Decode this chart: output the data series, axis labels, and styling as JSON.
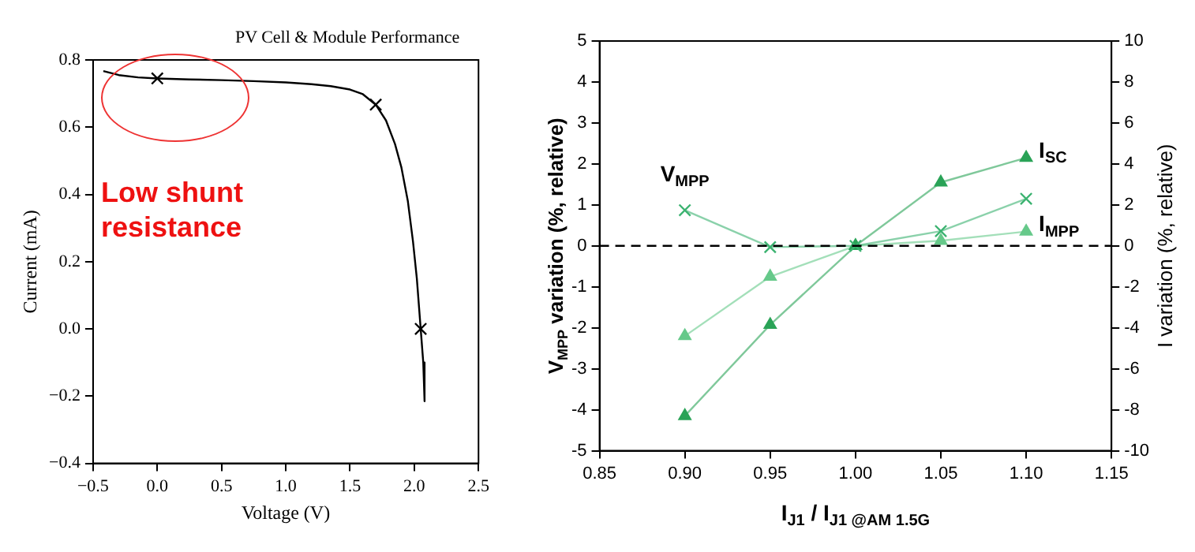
{
  "chart_data": [
    {
      "type": "line",
      "title": "PV Cell & Module Performance",
      "xlabel": "Voltage (V)",
      "ylabel": "Current (mA)",
      "annotations": [
        "Low shunt resistance"
      ],
      "grid": false,
      "legend": false,
      "xlim": [
        -0.5,
        2.5
      ],
      "xticks": [
        {
          "value": -0.5,
          "label": "−0.5"
        },
        {
          "value": 0,
          "label": "0.0"
        },
        0.5,
        {
          "value": 1,
          "label": "1.0"
        },
        1.5,
        {
          "value": 2,
          "label": "2.0"
        },
        2.5
      ],
      "ylim": [
        -0.4,
        0.8
      ],
      "yticks": [
        {
          "value": -0.4,
          "label": "−0.4"
        },
        {
          "value": -0.2,
          "label": "−0.2"
        },
        {
          "value": 0,
          "label": "0.0"
        },
        0.2,
        0.4,
        0.6,
        0.8
      ],
      "series": [
        {
          "type": "line",
          "color": "#000000",
          "marker": "none",
          "x": [
            -0.42,
            -0.3,
            -0.15,
            0,
            0.25,
            0.5,
            0.75,
            1.0,
            1.2,
            1.35,
            1.5,
            1.6,
            1.7,
            1.78,
            1.85,
            1.9,
            1.95,
            1.99,
            2.02,
            2.05,
            2.07,
            2.08
          ],
          "values": [
            0.767,
            0.755,
            0.748,
            0.745,
            0.742,
            0.74,
            0.737,
            0.733,
            0.728,
            0.722,
            0.712,
            0.698,
            0.667,
            0.62,
            0.55,
            0.48,
            0.38,
            0.26,
            0.15,
            0.0,
            -0.1,
            -0.215
          ]
        },
        {
          "type": "scatter",
          "color": "#000000",
          "marker": "cross",
          "x": [
            0,
            1.7,
            2.05
          ],
          "values": [
            0.745,
            0.667,
            0.0
          ]
        }
      ]
    },
    {
      "type": "line",
      "xlabel": "I$_{J1}$ / I$_{J1 @AM 1.5G}$",
      "ylabel": "V$_{MPP}$ variation (%, relative)",
      "y2label": "I variation (%, relative)",
      "grid": false,
      "legend": false,
      "xlim": [
        0.85,
        1.15
      ],
      "xticks": [
        0.85,
        {
          "value": 0.9,
          "label": "0.90"
        },
        0.95,
        {
          "value": 1,
          "label": "1.00"
        },
        1.05,
        {
          "value": 1.1,
          "label": "1.10"
        },
        1.15
      ],
      "ylim": [
        -5,
        5
      ],
      "yticks": [
        -5,
        -4,
        -3,
        -2,
        -1,
        0,
        1,
        2,
        3,
        4,
        5
      ],
      "y2lim": [
        -10,
        10
      ],
      "y2ticks": [
        -10,
        -8,
        -6,
        -4,
        -2,
        0,
        2,
        4,
        6,
        8,
        10
      ],
      "ref_lines": [
        {
          "axis": "y",
          "value": 0,
          "color": "#000000",
          "line_style": "dashed"
        }
      ],
      "x": [
        0.9,
        0.95,
        1.0,
        1.05,
        1.1
      ],
      "series": [
        {
          "name": "V$_{MPP}$",
          "color": "#3cb371",
          "marker": "cross",
          "values": [
            0.87,
            -0.03,
            0,
            0.36,
            1.15
          ]
        },
        {
          "name": "I$_{SC}$",
          "color": "#2aa357",
          "marker": "triangle",
          "axis": "y2",
          "values": [
            -8.3,
            -3.85,
            0,
            3.1,
            4.3
          ]
        },
        {
          "name": "I$_{MPP}$",
          "color": "#66c98a",
          "marker": "triangle",
          "axis": "y2",
          "values": [
            -4.4,
            -1.5,
            0,
            0.25,
            0.7
          ]
        }
      ]
    }
  ]
}
